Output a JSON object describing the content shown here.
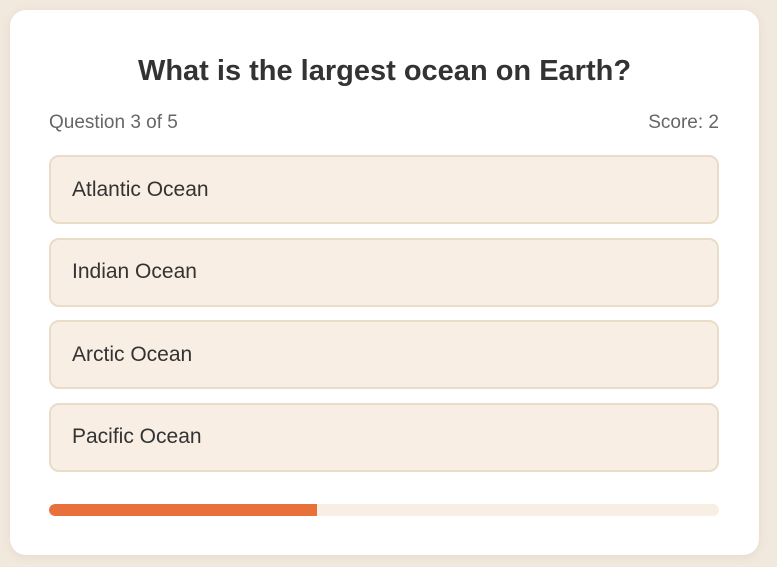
{
  "quiz": {
    "question": "What is the largest ocean on Earth?",
    "progress_label": "Question 3 of 5",
    "score_label": "Score: 2",
    "options": [
      {
        "label": "Atlantic Ocean"
      },
      {
        "label": "Indian Ocean"
      },
      {
        "label": "Arctic Ocean"
      },
      {
        "label": "Pacific Ocean"
      }
    ],
    "progress_fraction": 0.4
  },
  "colors": {
    "accent": "#e8703a",
    "option_bg": "#f8eee3",
    "option_border": "#e9dcc8",
    "page_bg": "#f2e9de"
  }
}
